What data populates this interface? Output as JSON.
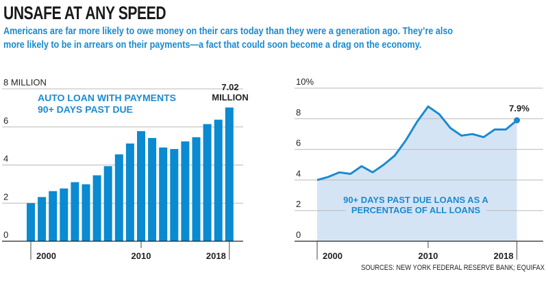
{
  "header": {
    "title": "UNSAFE AT ANY SPEED",
    "subtitle_line1": "Americans are far more likely to owe money on their cars today than they were a generation ago. They’re also",
    "subtitle_line2": "more likely to be in arrears on their payments—a fact that could soon become a drag on the economy."
  },
  "colors": {
    "bar": "#0a8ad0",
    "line": "#1a8ad0",
    "area": "#d5e4f5",
    "grid": "#b8b8b8",
    "annotation": "#1a8ad0"
  },
  "chart_data": [
    {
      "type": "bar",
      "title": "AUTO LOAN WITH PAYMENTS 90+ DAYS PAST DUE",
      "title_lines": [
        "AUTO LOAN WITH PAYMENTS",
        "90+ DAYS PAST DUE"
      ],
      "ylabel": "",
      "ylim": [
        0,
        8
      ],
      "yticks": [
        0,
        2,
        4,
        6,
        8
      ],
      "ytick_labels": [
        "0",
        "2",
        "4",
        "6",
        "8 MILLION"
      ],
      "x": [
        2000,
        2001,
        2002,
        2003,
        2004,
        2005,
        2006,
        2007,
        2008,
        2009,
        2010,
        2011,
        2012,
        2013,
        2014,
        2015,
        2016,
        2017,
        2018
      ],
      "xtick_labels": [
        "2000",
        "2010",
        "2018"
      ],
      "values": [
        2.0,
        2.32,
        2.63,
        2.77,
        3.1,
        2.99,
        3.46,
        3.94,
        4.56,
        5.13,
        5.78,
        5.42,
        4.92,
        4.84,
        5.24,
        5.46,
        6.15,
        6.38,
        7.02
      ],
      "annotation_lines": [
        "7.02",
        "MILLION"
      ],
      "grid": true
    },
    {
      "type": "area",
      "title": "90+ DAYS PAST DUE LOANS AS A PERCENTAGE OF ALL LOANS",
      "title_lines": [
        "90+ DAYS PAST DUE LOANS AS A",
        "PERCENTAGE OF ALL LOANS"
      ],
      "ylim": [
        0,
        10
      ],
      "yticks": [
        0,
        2,
        4,
        6,
        8,
        10
      ],
      "ytick_labels": [
        "0",
        "2",
        "4",
        "6",
        "8",
        "10%"
      ],
      "x": [
        2000,
        2001,
        2002,
        2003,
        2004,
        2005,
        2006,
        2007,
        2008,
        2009,
        2010,
        2011,
        2012,
        2013,
        2014,
        2015,
        2016,
        2017,
        2018
      ],
      "xtick_labels": [
        "2000",
        "2010",
        "2018"
      ],
      "values": [
        4.0,
        4.2,
        4.5,
        4.4,
        4.9,
        4.5,
        5.0,
        5.6,
        6.6,
        7.8,
        8.8,
        8.3,
        7.4,
        6.9,
        7.0,
        6.8,
        7.3,
        7.3,
        7.9
      ],
      "annotation": "7.9%",
      "grid": true
    }
  ],
  "source": "SOURCES: NEW YORK FEDERAL RESERVE BANK; EQUIFAX"
}
